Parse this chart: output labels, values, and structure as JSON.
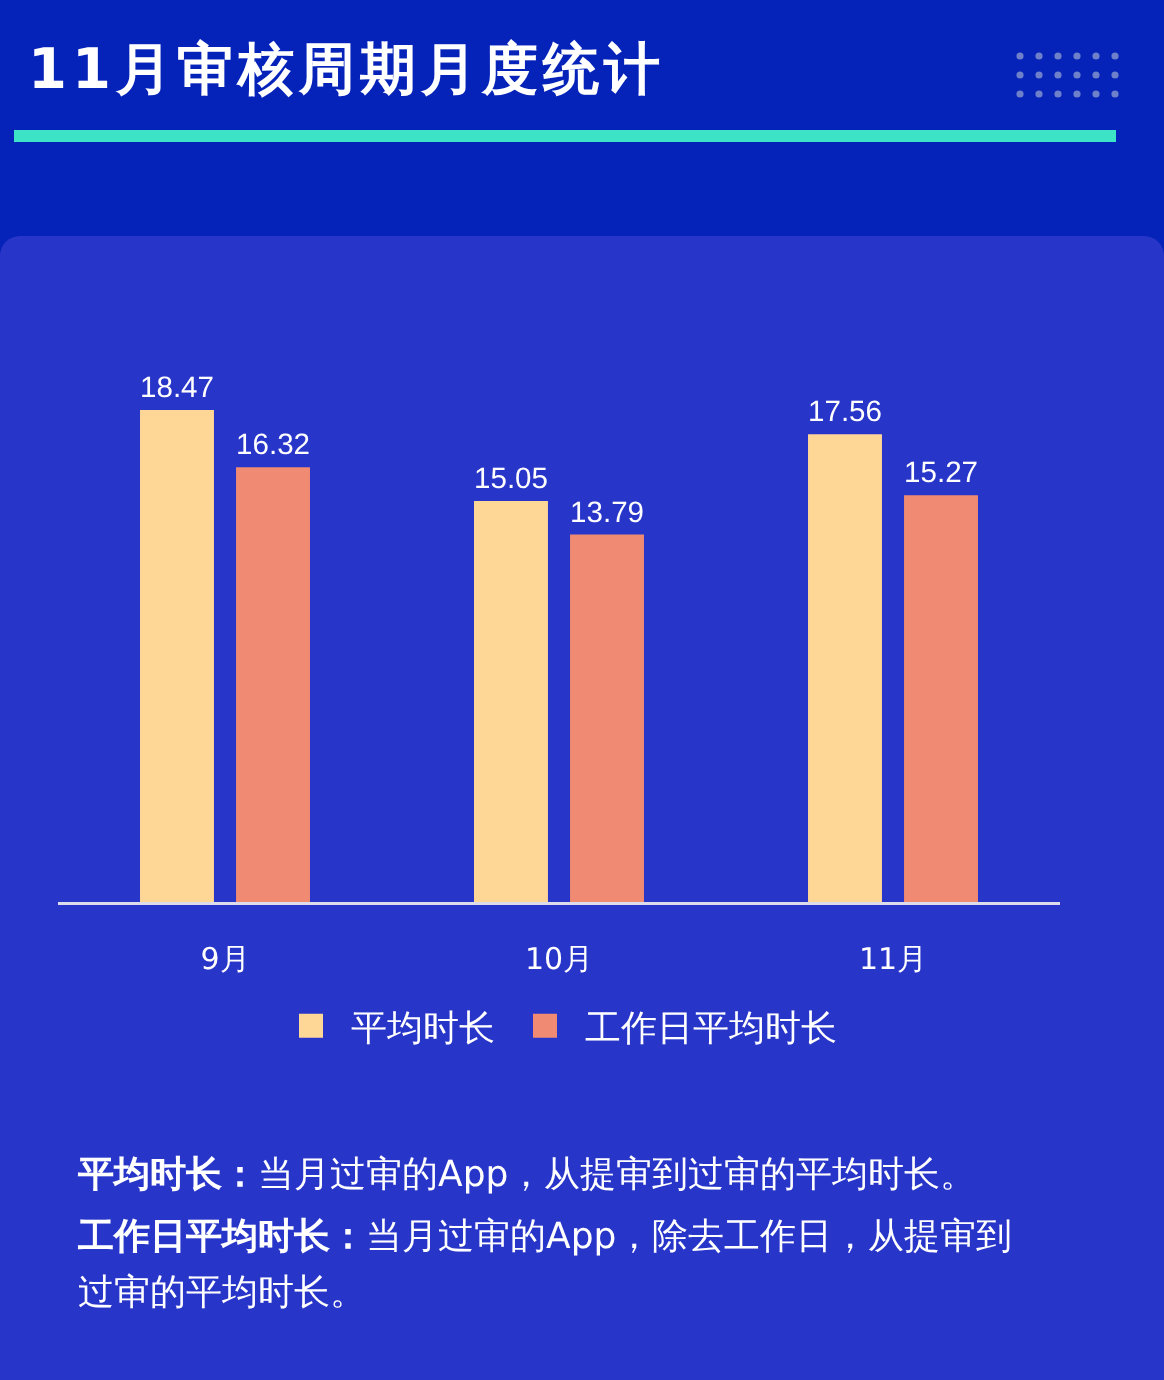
{
  "chart_data": {
    "type": "bar",
    "title": "11月审核周期月度统计",
    "categories": [
      "9月",
      "10月",
      "11月"
    ],
    "series": [
      {
        "name": "平均时长",
        "color": "#fed797",
        "values": [
          18.47,
          15.05,
          17.56
        ]
      },
      {
        "name": "工作日平均时长",
        "color": "#f08a72",
        "values": [
          16.32,
          13.79,
          15.27
        ]
      }
    ],
    "data_labels": true,
    "tick_labels": "x",
    "grid": false,
    "legend": "bottom",
    "annotations": [
      "平均时长：当月过审的App，从提审到过审的平均时长。",
      "工作日平均时长：当月过审的App，除去工作日，从提审到过审的平均时长。"
    ]
  }
}
